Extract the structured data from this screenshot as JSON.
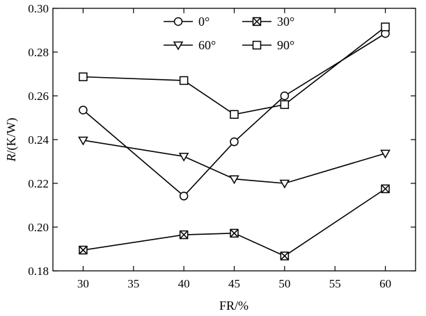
{
  "chart_data": {
    "type": "line",
    "xlabel": "FR/%",
    "ylabel_symbol": "R",
    "ylabel_unit": "/(K/W)",
    "xlim": [
      27,
      63
    ],
    "ylim": [
      0.18,
      0.3
    ],
    "x_ticks": [
      30,
      35,
      40,
      45,
      50,
      55,
      60
    ],
    "y_ticks": [
      0.18,
      0.2,
      0.22,
      0.24,
      0.26,
      0.28,
      0.3
    ],
    "y_tick_labels": [
      "0.18",
      "0.20",
      "0.22",
      "0.24",
      "0.26",
      "0.28",
      "0.30"
    ],
    "x": [
      30,
      40,
      45,
      50,
      60
    ],
    "grid": false,
    "legend_position": "top-center",
    "series": [
      {
        "name": "0°",
        "marker": "circle",
        "values": [
          0.2535,
          0.2142,
          0.239,
          0.26,
          0.2885
        ]
      },
      {
        "name": "30°",
        "marker": "boxed-x",
        "values": [
          0.1895,
          0.1965,
          0.1972,
          0.1868,
          0.2175
        ]
      },
      {
        "name": "60°",
        "marker": "triangle-down",
        "values": [
          0.2397,
          0.2323,
          0.222,
          0.22,
          0.2337
        ]
      },
      {
        "name": "90°",
        "marker": "square",
        "values": [
          0.2687,
          0.267,
          0.2515,
          0.256,
          0.2915
        ]
      }
    ]
  }
}
